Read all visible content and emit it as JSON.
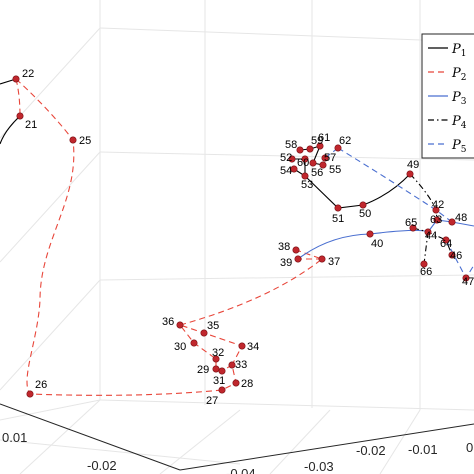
{
  "chart_data": {
    "type": "line",
    "title": "",
    "grid": true,
    "legend_position": "top-right",
    "tick_labels": [
      "0.01",
      "-0.02",
      "-0.03",
      "-0.04",
      "-0.03",
      "-0.02",
      "-0.01",
      "0"
    ],
    "legend": [
      {
        "main": "P",
        "sub": "1",
        "color": "#000000",
        "dash": ""
      },
      {
        "main": "P",
        "sub": "2",
        "color": "#e8463a",
        "dash": "6,4"
      },
      {
        "main": "P",
        "sub": "3",
        "color": "#4a6fd0",
        "dash": ""
      },
      {
        "main": "P",
        "sub": "4",
        "color": "#000000",
        "dash": "6,3,1.5,3"
      },
      {
        "main": "P",
        "sub": "5",
        "color": "#4a6fd0",
        "dash": "6,4"
      }
    ],
    "point_labels": [
      "21",
      "22",
      "25",
      "26",
      "27",
      "28",
      "29",
      "30",
      "31",
      "32",
      "33",
      "34",
      "35",
      "36",
      "37",
      "38",
      "39",
      "40",
      "42",
      "44",
      "46",
      "47",
      "48",
      "49",
      "50",
      "51",
      "52",
      "53",
      "54",
      "55",
      "56",
      "57",
      "58",
      "59",
      "60",
      "61",
      "62",
      "63",
      "64",
      "65",
      "66"
    ]
  }
}
